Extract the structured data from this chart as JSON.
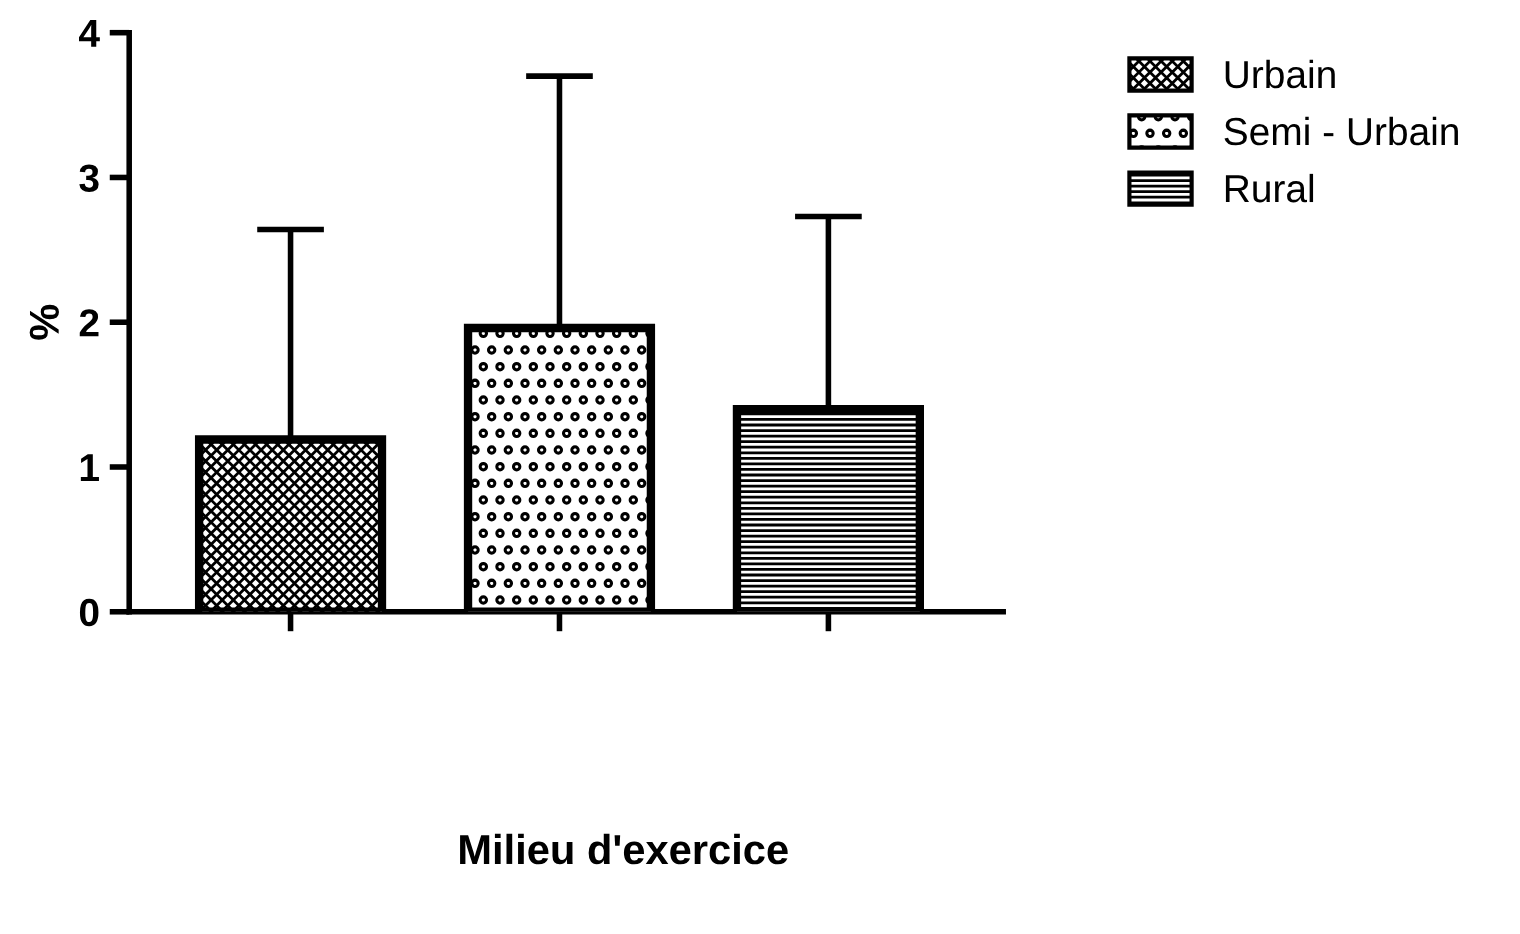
{
  "chart_data": {
    "type": "bar",
    "annotations": [
      "Milieu d'exercice"
    ],
    "ylabel": "%",
    "categories": [
      null,
      null,
      null
    ],
    "series": [
      {
        "name": "Urbain",
        "color": "#000000",
        "values": [
          1.19,
          null,
          null
        ],
        "errors": [
          [
            1.19,
            2.64
          ],
          null,
          null
        ]
      },
      {
        "name": "Semi - Urbain",
        "color": "#000000",
        "values": [
          null,
          1.96,
          null
        ],
        "errors": [
          null,
          [
            1.96,
            3.7
          ],
          null
        ]
      },
      {
        "name": "Rural",
        "color": "#000000",
        "values": [
          null,
          null,
          1.4
        ],
        "errors": [
          null,
          null,
          [
            1.4,
            2.73
          ]
        ]
      }
    ],
    "ylim": [
      0,
      4
    ],
    "yticks": [
      0,
      1,
      2,
      3,
      4
    ],
    "grid": false,
    "legend": "top right"
  }
}
